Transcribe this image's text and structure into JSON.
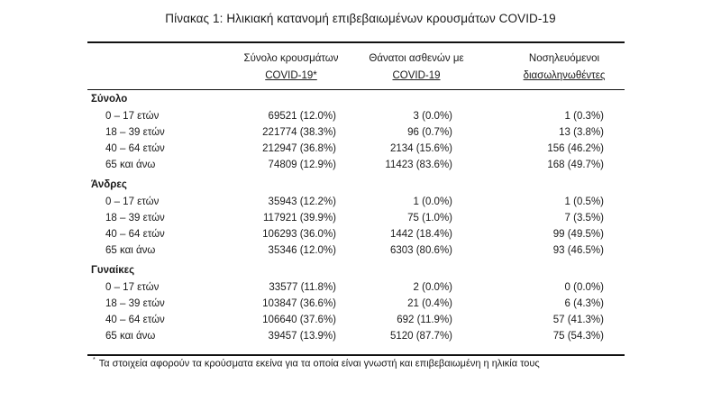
{
  "title": "Πίνακας 1: Ηλικιακή κατανομή επιβεβαιωμένων κρουσμάτων COVID-19",
  "columns": [
    {
      "line1": "Σύνολο κρουσμάτων",
      "line2": "COVID-19*"
    },
    {
      "line1": "Θάνατοι ασθενών με",
      "line2": "COVID-19"
    },
    {
      "line1": "Νοσηλευόμενοι",
      "line2": "διασωληνωθέντες"
    }
  ],
  "groups": [
    {
      "name": "Σύνολο",
      "rows": [
        {
          "age": "0 – 17 ετών",
          "cases": "69521 (12.0%)",
          "deaths": "3 (0.0%)",
          "intubated": "1 (0.3%)"
        },
        {
          "age": "18 – 39 ετών",
          "cases": "221774 (38.3%)",
          "deaths": "96 (0.7%)",
          "intubated": "13 (3.8%)"
        },
        {
          "age": "40 – 64 ετών",
          "cases": "212947 (36.8%)",
          "deaths": "2134 (15.6%)",
          "intubated": "156 (46.2%)"
        },
        {
          "age": "65 και άνω",
          "cases": "74809 (12.9%)",
          "deaths": "11423 (83.6%)",
          "intubated": "168 (49.7%)"
        }
      ]
    },
    {
      "name": "Άνδρες",
      "rows": [
        {
          "age": "0 – 17 ετών",
          "cases": "35943 (12.2%)",
          "deaths": "1 (0.0%)",
          "intubated": "1 (0.5%)"
        },
        {
          "age": "18 – 39 ετών",
          "cases": "117921 (39.9%)",
          "deaths": "75 (1.0%)",
          "intubated": "7 (3.5%)"
        },
        {
          "age": "40 – 64 ετών",
          "cases": "106293 (36.0%)",
          "deaths": "1442 (18.4%)",
          "intubated": "99 (49.5%)"
        },
        {
          "age": "65 και άνω",
          "cases": "35346 (12.0%)",
          "deaths": "6303 (80.6%)",
          "intubated": "93 (46.5%)"
        }
      ]
    },
    {
      "name": "Γυναίκες",
      "rows": [
        {
          "age": "0 – 17 ετών",
          "cases": "33577 (11.8%)",
          "deaths": "2 (0.0%)",
          "intubated": "0 (0.0%)"
        },
        {
          "age": "18 – 39 ετών",
          "cases": "103847 (36.6%)",
          "deaths": "21 (0.4%)",
          "intubated": "6 (4.3%)"
        },
        {
          "age": "40 – 64 ετών",
          "cases": "106640 (37.6%)",
          "deaths": "692 (11.9%)",
          "intubated": "57 (41.3%)"
        },
        {
          "age": "65 και άνω",
          "cases": "39457 (13.9%)",
          "deaths": "5120 (87.7%)",
          "intubated": "75 (54.3%)"
        }
      ]
    }
  ],
  "footnote": {
    "mark": "*",
    "text": "Τα στοιχεία αφορούν τα κρούσματα εκείνα για τα οποία είναι γνωστή και επιβεβαιωμένη η ηλικία τους"
  }
}
